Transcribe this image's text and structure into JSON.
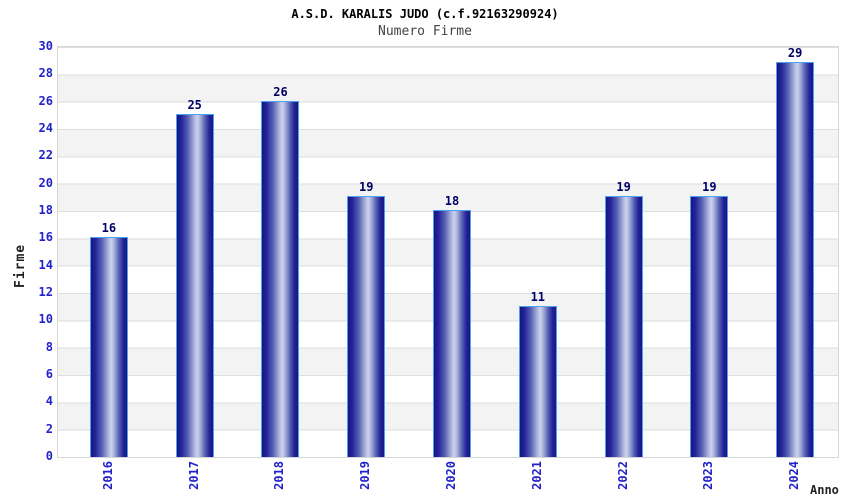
{
  "chart_data": {
    "type": "bar",
    "title": "A.S.D. KARALIS JUDO (c.f.92163290924)",
    "subtitle": "Numero Firme",
    "xlabel": "Anno",
    "ylabel": "Firme",
    "categories": [
      "2016",
      "2017",
      "2018",
      "2019",
      "2020",
      "2021",
      "2022",
      "2023",
      "2024"
    ],
    "values": [
      16,
      25,
      26,
      19,
      18,
      11,
      19,
      19,
      29
    ],
    "ylim": [
      0,
      30
    ],
    "ytick_step": 2,
    "grid": "horizontal-bands",
    "legend_position": "none",
    "colors": {
      "title": "#000000",
      "subtitle": "#444444",
      "axis_title": "#222222",
      "axis_tick_label": "#2222CC",
      "value_label": "#000066",
      "bar_edge": "#17177E",
      "bar_mid": "#CDD3EC",
      "bar_border": "#4DA1F0",
      "band_light": "#FFFFFF",
      "band_dark": "#F3F3F3",
      "gridline": "#DEDEDE",
      "plot_border": "#D6D6D6"
    }
  }
}
